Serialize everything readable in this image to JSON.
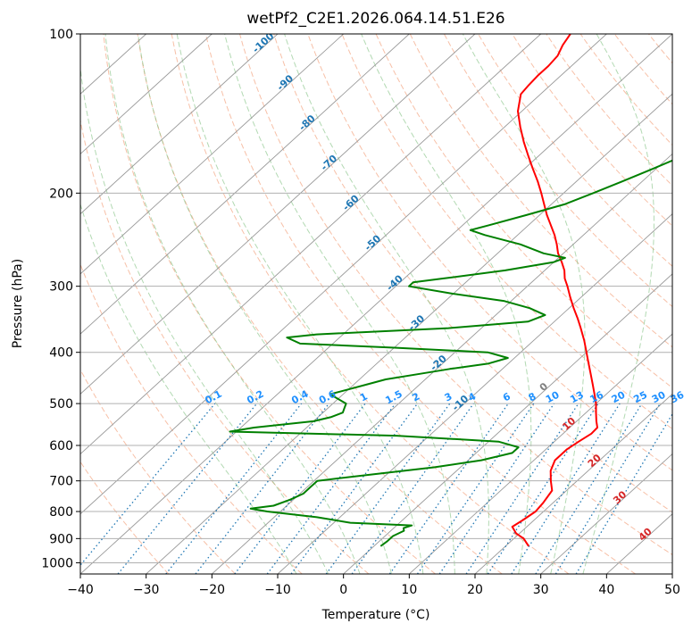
{
  "chart_data": {
    "type": "line",
    "title": "wetPf2_C2E1.2026.064.14.51.E26",
    "xlabel": "Temperature (°C)",
    "ylabel": "Pressure (hPa)",
    "xlim": [
      -40,
      50
    ],
    "ylim": [
      1050,
      100
    ],
    "y_scale": "log",
    "x_ticks": [
      -40,
      -30,
      -20,
      -10,
      0,
      10,
      20,
      30,
      40,
      50
    ],
    "y_ticks": [
      100,
      200,
      300,
      400,
      500,
      600,
      700,
      800,
      900,
      1000
    ],
    "grid": true,
    "series": [
      {
        "color": "#ff0000",
        "p": [
          930,
          900,
          880,
          855,
          830,
          800,
          770,
          730,
          700,
          670,
          640,
          610,
          590,
          570,
          555,
          540,
          520,
          500,
          480,
          460,
          440,
          420,
          400,
          380,
          360,
          345,
          330,
          315,
          300,
          290,
          280,
          270,
          260,
          250,
          240,
          230,
          220,
          210,
          200,
          190,
          180,
          170,
          160,
          150,
          140,
          130,
          125,
          120,
          115,
          110,
          105,
          100
        ],
        "t": [
          23.5,
          21.5,
          19.5,
          17.8,
          18.3,
          18.8,
          18.5,
          17.8,
          16.0,
          14.3,
          13.2,
          13.2,
          13.7,
          14.3,
          14.2,
          13.0,
          11.5,
          10.0,
          8.2,
          6.3,
          4.3,
          2.2,
          0.0,
          -2.3,
          -4.9,
          -7.0,
          -9.3,
          -11.6,
          -13.9,
          -15.6,
          -17.0,
          -18.8,
          -20.8,
          -22.5,
          -24.4,
          -26.6,
          -28.9,
          -31.1,
          -33.4,
          -35.9,
          -38.7,
          -41.6,
          -44.6,
          -47.6,
          -50.6,
          -53.0,
          -53.3,
          -53.5,
          -53.5,
          -53.8,
          -54.8,
          -55.5
        ]
      },
      {
        "color": "#008000",
        "p": [
          930,
          910,
          890,
          870,
          860,
          850,
          840,
          820,
          800,
          790,
          780,
          760,
          740,
          720,
          700,
          680,
          660,
          640,
          620,
          605,
          590,
          575,
          565,
          555,
          540,
          530,
          520,
          510,
          500,
          490,
          480,
          470,
          460,
          450,
          440,
          430,
          420,
          410,
          400,
          392,
          385,
          375,
          370,
          360,
          350,
          340,
          330,
          320,
          310,
          300,
          295,
          290,
          280,
          270,
          265,
          260,
          250,
          240,
          235,
          230,
          220,
          210,
          200,
          190,
          180,
          170,
          160,
          150,
          140,
          130,
          120,
          110,
          100
        ],
        "td": [
          1.0,
          1.2,
          1.2,
          2.0,
          1.5,
          2.3,
          -7.5,
          -13.5,
          -22.0,
          -25.0,
          -22.0,
          -20.5,
          -19.5,
          -19.5,
          -19.5,
          -12.0,
          -4.0,
          2.0,
          5.5,
          5.5,
          1.5,
          -15.0,
          -41.0,
          -38.0,
          -30.0,
          -28.0,
          -27.0,
          -27.5,
          -28.0,
          -30.0,
          -32.0,
          -30.0,
          -28.0,
          -26.0,
          -22.0,
          -18.0,
          -13.0,
          -11.0,
          -15.0,
          -30.0,
          -45.0,
          -48.0,
          -44.0,
          -25.0,
          -14.0,
          -12.5,
          -16.0,
          -21.0,
          -30.0,
          -38.0,
          -38.0,
          -34.0,
          -26.0,
          -20.0,
          -19.0,
          -23.0,
          -28.0,
          -35.0,
          -38.0,
          -36.0,
          -32.0,
          -28.0,
          -25.5,
          -23.0,
          -20.5,
          -18.0,
          -14.5,
          -11.0,
          -8.0,
          -5.5,
          -3.5,
          -2.0,
          -0.5
        ]
      }
    ],
    "skewt_params": {
      "dry_adiabats_degC": [
        -30,
        -20,
        -10,
        0,
        10,
        20,
        30,
        40,
        50,
        60,
        70,
        80,
        90,
        100,
        110,
        120,
        130,
        140,
        150,
        160,
        170,
        180,
        190,
        200
      ],
      "moist_adiabats_degC": [
        -10,
        -5,
        0,
        5,
        10,
        15,
        20,
        25,
        30,
        35
      ],
      "mixing_ratio_gkg": [
        0.1,
        0.2,
        0.4,
        0.6,
        1,
        1.5,
        2,
        3,
        4,
        6,
        8,
        10,
        13,
        16,
        20,
        25,
        30,
        36
      ],
      "skew_isotherms_degC": [
        -160,
        -150,
        -140,
        -130,
        -120,
        -110,
        -100,
        -90,
        -80,
        -70,
        -60,
        -50,
        -40,
        -30,
        -20,
        -10,
        0,
        10,
        20,
        30,
        40,
        50
      ]
    },
    "isotherm_labels": [
      {
        "text": "-100",
        "color": "#1f77b4"
      },
      {
        "text": "-90",
        "color": "#1f77b4"
      },
      {
        "text": "-80",
        "color": "#1f77b4"
      },
      {
        "text": "-70",
        "color": "#1f77b4"
      },
      {
        "text": "-60",
        "color": "#1f77b4"
      },
      {
        "text": "-50",
        "color": "#1f77b4"
      },
      {
        "text": "-40",
        "color": "#1f77b4"
      },
      {
        "text": "-30",
        "color": "#1f77b4"
      },
      {
        "text": "-20",
        "color": "#1f77b4"
      },
      {
        "text": "-10",
        "color": "#1f77b4"
      },
      {
        "text": "0",
        "color": "#808080"
      },
      {
        "text": "10",
        "color": "#d62728"
      },
      {
        "text": "20",
        "color": "#d62728"
      },
      {
        "text": "30",
        "color": "#d62728"
      },
      {
        "text": "40",
        "color": "#d62728"
      }
    ],
    "mixing_ratio_labels": [
      "0.1",
      "0.2",
      "0.4",
      "0.6",
      "1",
      "1.5",
      "2",
      "3",
      "4",
      "6",
      "8",
      "10",
      "13",
      "16",
      "20",
      "25",
      "30",
      "36"
    ]
  }
}
